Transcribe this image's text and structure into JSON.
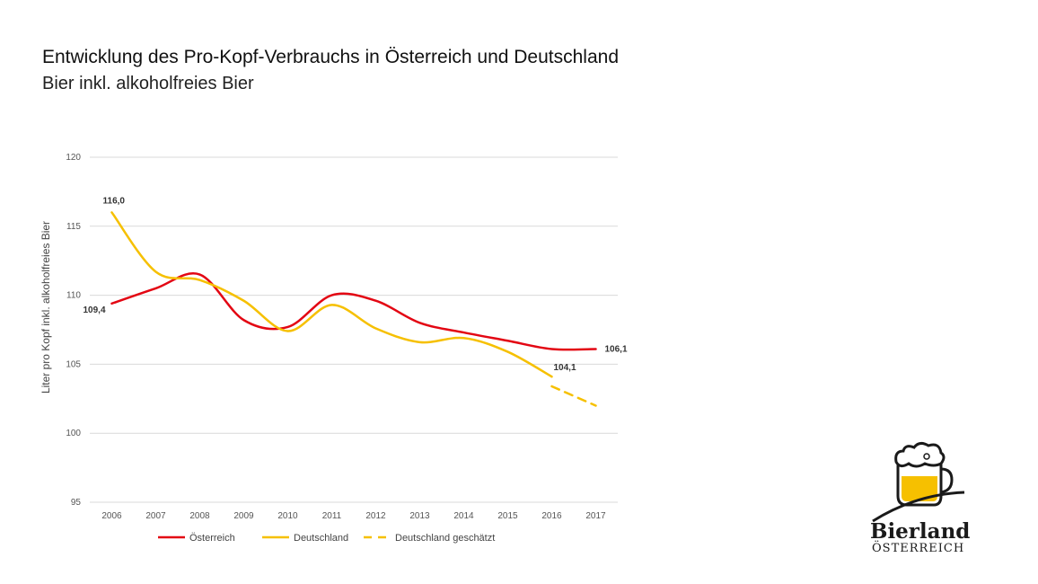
{
  "header": {
    "title": "Entwicklung des Pro-Kopf-Verbrauchs in Österreich und Deutschland",
    "subtitle": "Bier inkl. alkoholfreies Bier"
  },
  "chart_data": {
    "type": "line",
    "title": "Entwicklung des Pro-Kopf-Verbrauchs in Österreich und Deutschland",
    "subtitle": "Bier inkl. alkoholfreies Bier",
    "xlabel": "",
    "ylabel": "Liter pro Kopf inkl. alkoholfreies Bier",
    "ylim": [
      95,
      120
    ],
    "yticks": [
      95,
      100,
      105,
      110,
      115,
      120
    ],
    "grid": true,
    "legend_position": "bottom",
    "categories": [
      "2006",
      "2007",
      "2008",
      "2009",
      "2010",
      "2011",
      "2012",
      "2013",
      "2014",
      "2015",
      "2016",
      "2017"
    ],
    "series": [
      {
        "name": "Österreich",
        "color": "#e30613",
        "style": "solid",
        "values": [
          109.4,
          110.5,
          111.5,
          108.2,
          107.7,
          110.0,
          109.6,
          108.0,
          107.3,
          106.7,
          106.1,
          106.1
        ]
      },
      {
        "name": "Deutschland",
        "color": "#f6c000",
        "style": "solid",
        "values": [
          116.0,
          111.7,
          111.1,
          109.6,
          107.4,
          109.3,
          107.6,
          106.6,
          106.9,
          105.9,
          104.1,
          null
        ]
      },
      {
        "name": "Deutschland geschätzt",
        "color": "#f6c000",
        "style": "dashed",
        "values": [
          null,
          null,
          null,
          null,
          null,
          null,
          null,
          null,
          null,
          null,
          103.4,
          102.0
        ]
      }
    ],
    "data_labels": [
      {
        "text": "116,0",
        "series": "Deutschland",
        "x": "2006",
        "value": 116.0
      },
      {
        "text": "109,4",
        "series": "Österreich",
        "x": "2006",
        "value": 109.4
      },
      {
        "text": "106,1",
        "series": "Österreich",
        "x": "2017",
        "value": 106.1
      },
      {
        "text": "104,1",
        "series": "Deutschland",
        "x": "2016",
        "value": 104.1
      }
    ]
  },
  "logo": {
    "word": "Bierland",
    "sub": "ÖSTERREICH",
    "colors": {
      "beer": "#f6c000",
      "foam": "#ffffff",
      "outline": "#1a1a1a"
    }
  }
}
